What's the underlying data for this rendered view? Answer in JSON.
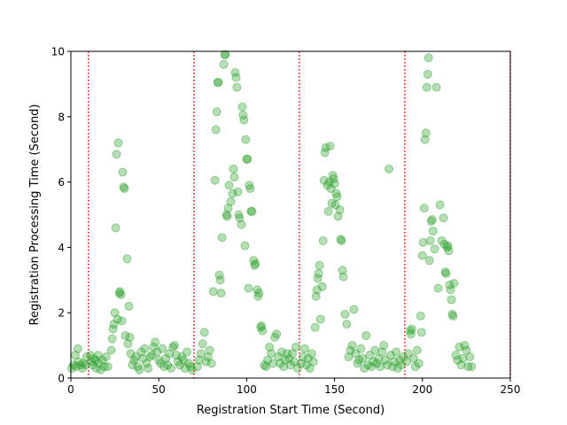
{
  "colors": {
    "point": "#2ca02c",
    "vline": "#ff0000",
    "axis": "#000000",
    "background": "#ffffff"
  },
  "chart_data": {
    "type": "scatter",
    "title": "",
    "xlabel": "Registration Start Time (Second)",
    "ylabel": "Registration Processing Time (Second)",
    "xlim": [
      0,
      250
    ],
    "ylim": [
      0,
      10
    ],
    "xticks": [
      0,
      50,
      100,
      150,
      200,
      250
    ],
    "yticks": [
      0,
      2,
      4,
      6,
      8,
      10
    ],
    "grid": false,
    "legend": "none",
    "point_alpha": 0.35,
    "vertical_lines": [
      10,
      70,
      130,
      190,
      250
    ],
    "points": [
      [
        0.5,
        0.3
      ],
      [
        1.5,
        0.4
      ],
      [
        2.5,
        0.7
      ],
      [
        3,
        0.35
      ],
      [
        4,
        0.9
      ],
      [
        4.5,
        0.5
      ],
      [
        5.5,
        0.4
      ],
      [
        6.5,
        0.3
      ],
      [
        7,
        0.45
      ],
      [
        8.5,
        0.4
      ],
      [
        9,
        0.65
      ],
      [
        11,
        0.7
      ],
      [
        11.5,
        0.5
      ],
      [
        12.5,
        0.4
      ],
      [
        13,
        0.6
      ],
      [
        14,
        0.55
      ],
      [
        14.5,
        0.3
      ],
      [
        15.5,
        0.7
      ],
      [
        16,
        0.45
      ],
      [
        17,
        0.25
      ],
      [
        18,
        0.55
      ],
      [
        19,
        0.35
      ],
      [
        20,
        0.65
      ],
      [
        21,
        0.35
      ],
      [
        23,
        0.85
      ],
      [
        23.5,
        1.2
      ],
      [
        24,
        1.5
      ],
      [
        24.5,
        1.65
      ],
      [
        25,
        2.0
      ],
      [
        25.5,
        4.6
      ],
      [
        26,
        6.85
      ],
      [
        27,
        7.2
      ],
      [
        26.5,
        1.8
      ],
      [
        27.5,
        2.6
      ],
      [
        28,
        2.65
      ],
      [
        28.5,
        2.55
      ],
      [
        29,
        1.75
      ],
      [
        29.5,
        6.3
      ],
      [
        30,
        5.85
      ],
      [
        30.5,
        5.8
      ],
      [
        31,
        1.3
      ],
      [
        32,
        3.65
      ],
      [
        32.5,
        1.05
      ],
      [
        33,
        2.2
      ],
      [
        33.5,
        1.25
      ],
      [
        34,
        0.75
      ],
      [
        35,
        0.4
      ],
      [
        36,
        0.55
      ],
      [
        37,
        0.65
      ],
      [
        38,
        0.35
      ],
      [
        39,
        0.25
      ],
      [
        40,
        0.8
      ],
      [
        41,
        0.6
      ],
      [
        42,
        0.9
      ],
      [
        43,
        0.45
      ],
      [
        44,
        0.3
      ],
      [
        45,
        0.65
      ],
      [
        46,
        0.7
      ],
      [
        47,
        0.95
      ],
      [
        48,
        1.1
      ],
      [
        49,
        0.8
      ],
      [
        50,
        0.55
      ],
      [
        51,
        0.45
      ],
      [
        52,
        0.9
      ],
      [
        53,
        0.35
      ],
      [
        54,
        0.6
      ],
      [
        55,
        0.4
      ],
      [
        56,
        0.75
      ],
      [
        57,
        0.3
      ],
      [
        58,
        0.95
      ],
      [
        59,
        1.0
      ],
      [
        60,
        0.7
      ],
      [
        61,
        0.5
      ],
      [
        62,
        0.4
      ],
      [
        63,
        0.65
      ],
      [
        64,
        0.55
      ],
      [
        65,
        0.3
      ],
      [
        66,
        0.8
      ],
      [
        67,
        0.45
      ],
      [
        68,
        0.35
      ],
      [
        69,
        0.25
      ],
      [
        72,
        0.35
      ],
      [
        73,
        0.55
      ],
      [
        74,
        0.75
      ],
      [
        75,
        1.05
      ],
      [
        76,
        1.4
      ],
      [
        77,
        0.5
      ],
      [
        78,
        0.65
      ],
      [
        79,
        0.85
      ],
      [
        80,
        0.45
      ],
      [
        81,
        2.65
      ],
      [
        82,
        6.05
      ],
      [
        82.5,
        7.6
      ],
      [
        83,
        8.15
      ],
      [
        83.5,
        9.05
      ],
      [
        84,
        9.05
      ],
      [
        84.5,
        3.15
      ],
      [
        85,
        3.0
      ],
      [
        85.5,
        2.6
      ],
      [
        86,
        4.3
      ],
      [
        87,
        9.6
      ],
      [
        87.5,
        9.9
      ],
      [
        88,
        9.9
      ],
      [
        88.5,
        5.0
      ],
      [
        89,
        4.95
      ],
      [
        89.5,
        5.2
      ],
      [
        90,
        5.9
      ],
      [
        91,
        5.4
      ],
      [
        92,
        5.65
      ],
      [
        92.5,
        6.4
      ],
      [
        93,
        6.15
      ],
      [
        93.5,
        9.35
      ],
      [
        94,
        9.2
      ],
      [
        94.5,
        8.9
      ],
      [
        95,
        5.7
      ],
      [
        95.5,
        5.0
      ],
      [
        96,
        4.9
      ],
      [
        97,
        4.7
      ],
      [
        97.5,
        8.3
      ],
      [
        98,
        8.05
      ],
      [
        98.5,
        7.9
      ],
      [
        99,
        4.05
      ],
      [
        99.5,
        7.3
      ],
      [
        100,
        6.7
      ],
      [
        100.5,
        6.7
      ],
      [
        101,
        2.75
      ],
      [
        101.5,
        5.9
      ],
      [
        102,
        5.8
      ],
      [
        102.5,
        5.1
      ],
      [
        103,
        5.1
      ],
      [
        104,
        3.6
      ],
      [
        104.5,
        3.45
      ],
      [
        105,
        3.5
      ],
      [
        106,
        2.7
      ],
      [
        106.5,
        2.5
      ],
      [
        107,
        2.6
      ],
      [
        108,
        1.55
      ],
      [
        108.5,
        1.6
      ],
      [
        109,
        1.45
      ],
      [
        110,
        0.4
      ],
      [
        111,
        0.35
      ],
      [
        112,
        0.55
      ],
      [
        113,
        0.95
      ],
      [
        114,
        0.75
      ],
      [
        115,
        0.45
      ],
      [
        116,
        1.25
      ],
      [
        117,
        1.35
      ],
      [
        118,
        0.65
      ],
      [
        119,
        0.45
      ],
      [
        120,
        0.8
      ],
      [
        121,
        0.35
      ],
      [
        122,
        0.55
      ],
      [
        123,
        0.75
      ],
      [
        124,
        0.6
      ],
      [
        125,
        0.4
      ],
      [
        126,
        0.75
      ],
      [
        127,
        0.5
      ],
      [
        128,
        0.95
      ],
      [
        129,
        0.3
      ],
      [
        131,
        0.45
      ],
      [
        132,
        0.65
      ],
      [
        133,
        0.9
      ],
      [
        134,
        0.4
      ],
      [
        135,
        0.6
      ],
      [
        136,
        0.3
      ],
      [
        137,
        0.75
      ],
      [
        138,
        0.5
      ],
      [
        139,
        1.55
      ],
      [
        139.5,
        2.5
      ],
      [
        140,
        2.7
      ],
      [
        140.5,
        3.05
      ],
      [
        141,
        3.2
      ],
      [
        141.5,
        3.45
      ],
      [
        142,
        1.8
      ],
      [
        143,
        2.8
      ],
      [
        143.5,
        4.2
      ],
      [
        144,
        6.05
      ],
      [
        144.5,
        6.9
      ],
      [
        145,
        7.05
      ],
      [
        146,
        5.9
      ],
      [
        146.5,
        5.1
      ],
      [
        147,
        6.0
      ],
      [
        147.5,
        7.1
      ],
      [
        148,
        5.8
      ],
      [
        148.5,
        5.35
      ],
      [
        149,
        6.2
      ],
      [
        149.5,
        6.1
      ],
      [
        150,
        5.95
      ],
      [
        150.5,
        5.3
      ],
      [
        151,
        5.65
      ],
      [
        151.5,
        5.55
      ],
      [
        152,
        4.95
      ],
      [
        153,
        5.15
      ],
      [
        153.5,
        4.25
      ],
      [
        154,
        4.2
      ],
      [
        154.5,
        3.3
      ],
      [
        155,
        3.1
      ],
      [
        156,
        1.95
      ],
      [
        157,
        1.65
      ],
      [
        158,
        0.65
      ],
      [
        159,
        0.85
      ],
      [
        160,
        1.0
      ],
      [
        161,
        2.1
      ],
      [
        162,
        0.75
      ],
      [
        163,
        0.45
      ],
      [
        164,
        0.55
      ],
      [
        165,
        0.9
      ],
      [
        166,
        0.6
      ],
      [
        167,
        0.3
      ],
      [
        168,
        1.3
      ],
      [
        169,
        0.4
      ],
      [
        170,
        0.7
      ],
      [
        171,
        0.35
      ],
      [
        172,
        0.5
      ],
      [
        173,
        0.85
      ],
      [
        174,
        0.45
      ],
      [
        175,
        0.6
      ],
      [
        176,
        0.35
      ],
      [
        177,
        0.8
      ],
      [
        178,
        1.0
      ],
      [
        179,
        0.55
      ],
      [
        180,
        0.4
      ],
      [
        181,
        6.4
      ],
      [
        182,
        0.7
      ],
      [
        183,
        0.35
      ],
      [
        184,
        0.5
      ],
      [
        185,
        0.8
      ],
      [
        186,
        0.3
      ],
      [
        187,
        0.55
      ],
      [
        188,
        0.4
      ],
      [
        189,
        0.65
      ],
      [
        191,
        0.5
      ],
      [
        192,
        0.75
      ],
      [
        193,
        1.45
      ],
      [
        193.5,
        1.35
      ],
      [
        194,
        1.5
      ],
      [
        195,
        0.6
      ],
      [
        196,
        0.35
      ],
      [
        197,
        0.85
      ],
      [
        198,
        0.45
      ],
      [
        199,
        1.9
      ],
      [
        199.5,
        1.4
      ],
      [
        200,
        3.75
      ],
      [
        200.5,
        4.15
      ],
      [
        201,
        5.2
      ],
      [
        201.5,
        7.3
      ],
      [
        202,
        7.5
      ],
      [
        202.5,
        8.9
      ],
      [
        203,
        9.3
      ],
      [
        203.5,
        9.8
      ],
      [
        204,
        3.6
      ],
      [
        204.5,
        4.2
      ],
      [
        205,
        4.8
      ],
      [
        205.5,
        4.85
      ],
      [
        206,
        4.5
      ],
      [
        207,
        3.95
      ],
      [
        208,
        8.9
      ],
      [
        209,
        2.75
      ],
      [
        210,
        5.3
      ],
      [
        211,
        4.2
      ],
      [
        212,
        4.9
      ],
      [
        212.5,
        4.1
      ],
      [
        213,
        3.25
      ],
      [
        213.5,
        3.2
      ],
      [
        214,
        4.0
      ],
      [
        214.5,
        4.05
      ],
      [
        215,
        3.9
      ],
      [
        215.5,
        2.85
      ],
      [
        216,
        2.7
      ],
      [
        216.5,
        2.4
      ],
      [
        217,
        1.95
      ],
      [
        217.5,
        1.9
      ],
      [
        218,
        2.9
      ],
      [
        219,
        0.7
      ],
      [
        220,
        0.55
      ],
      [
        221,
        0.95
      ],
      [
        222,
        0.4
      ],
      [
        223,
        0.6
      ],
      [
        224,
        1.0
      ],
      [
        225,
        0.85
      ],
      [
        226,
        0.35
      ],
      [
        227,
        0.65
      ],
      [
        228,
        0.35
      ]
    ]
  }
}
